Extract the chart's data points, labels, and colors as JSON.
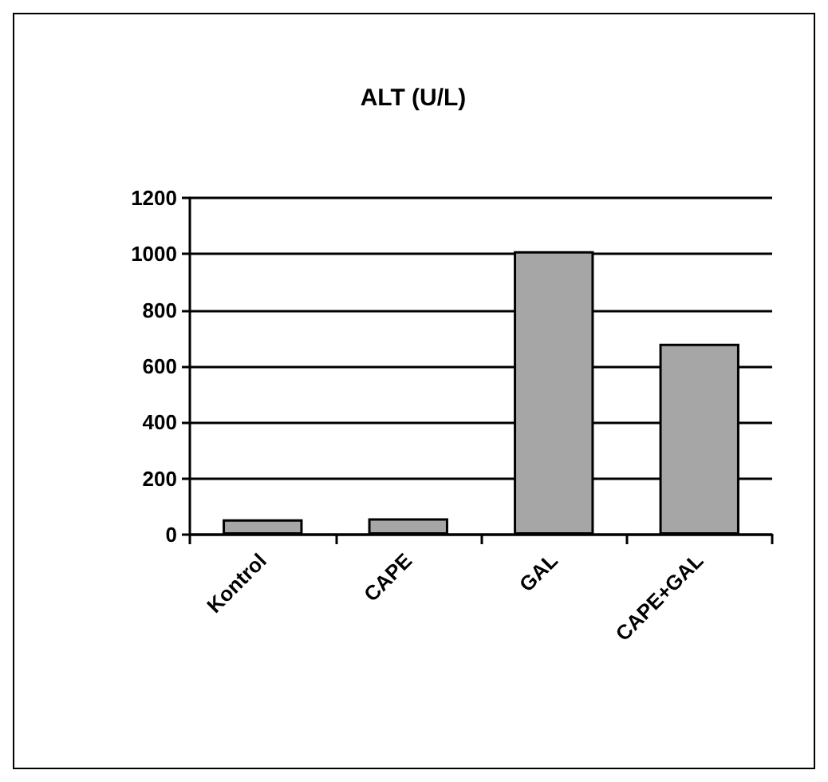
{
  "chart_data": {
    "type": "bar",
    "title": "ALT (U/L)",
    "categories": [
      "Kontrol",
      "CAPE",
      "GAL",
      "CAPE+GAL"
    ],
    "values": [
      55,
      58,
      1010,
      680
    ],
    "color": "#a6a6a6",
    "ylim": [
      0,
      1200
    ],
    "yticks": [
      0,
      200,
      400,
      600,
      800,
      1000,
      1200
    ],
    "grid": "y"
  }
}
